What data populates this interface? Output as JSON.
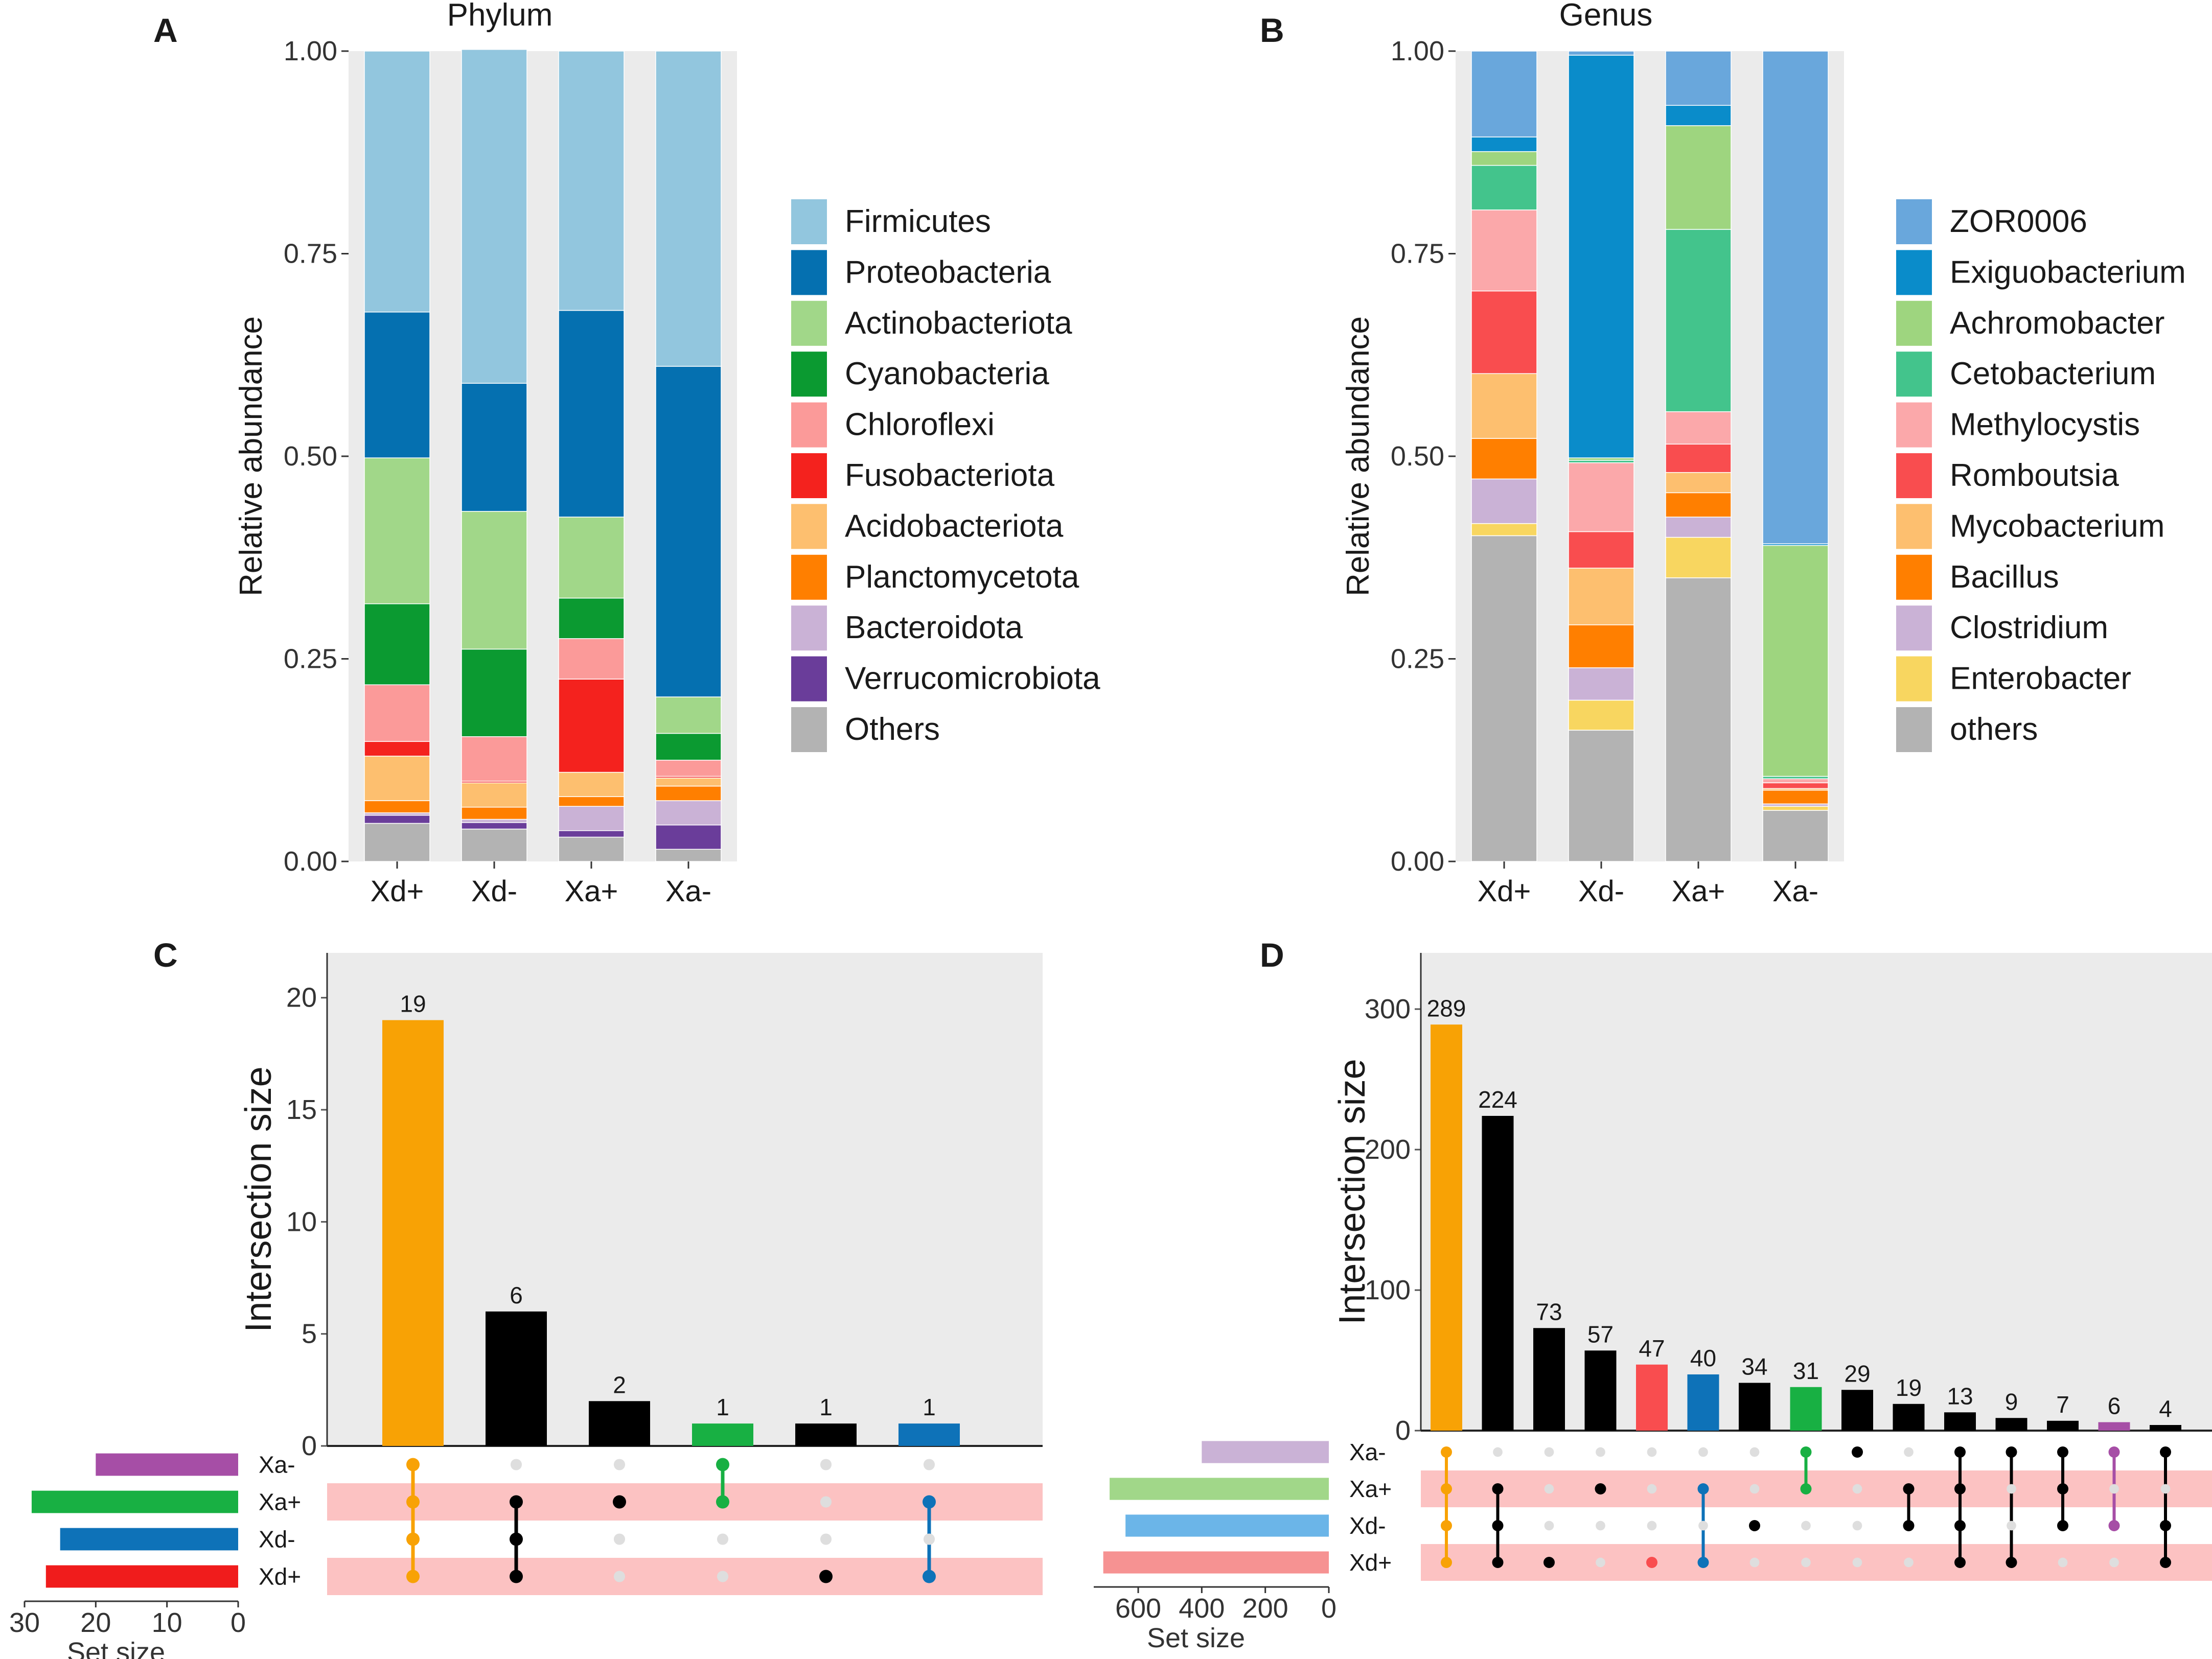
{
  "panels": {
    "A": {
      "letter": "A",
      "title": "Phylum"
    },
    "B": {
      "letter": "B",
      "title": "Genus"
    },
    "C": {
      "letter": "C"
    },
    "D": {
      "letter": "D"
    }
  },
  "chart_data": [
    {
      "id": "A",
      "type": "bar",
      "stacked": true,
      "title": "Phylum",
      "xlabel": "",
      "ylabel": "Relative abundance",
      "ylim": [
        0,
        1
      ],
      "yticks": [
        "0.00",
        "0.25",
        "0.50",
        "0.75",
        "1.00"
      ],
      "categories": [
        "Xd+",
        "Xd-",
        "Xa+",
        "Xa-"
      ],
      "legend_position": "right",
      "series": [
        {
          "name": "Others",
          "color": "#b3b3b3",
          "values": [
            0.047,
            0.04,
            0.03,
            0.015
          ]
        },
        {
          "name": "Verrucomicrobiota",
          "color": "#6a3d9a",
          "values": [
            0.01,
            0.008,
            0.008,
            0.03
          ]
        },
        {
          "name": "Bacteroidota",
          "color": "#cab2d6",
          "values": [
            0.003,
            0.004,
            0.03,
            0.03
          ]
        },
        {
          "name": "Planctomycetota",
          "color": "#ff7f00",
          "values": [
            0.015,
            0.015,
            0.012,
            0.018
          ]
        },
        {
          "name": "Acidobacteriota",
          "color": "#fdbf6f",
          "values": [
            0.055,
            0.03,
            0.03,
            0.01
          ]
        },
        {
          "name": "Fusobacteriota",
          "color": "#f4221e",
          "values": [
            0.018,
            0.002,
            0.115,
            0.002
          ]
        },
        {
          "name": "Chloroflexi",
          "color": "#fb9a99",
          "values": [
            0.07,
            0.055,
            0.05,
            0.02
          ]
        },
        {
          "name": "Cyanobacteria",
          "color": "#0b9a31",
          "values": [
            0.1,
            0.108,
            0.05,
            0.033
          ]
        },
        {
          "name": "Actinobacteriota",
          "color": "#a1d789",
          "values": [
            0.18,
            0.17,
            0.1,
            0.045
          ]
        },
        {
          "name": "Proteobacteria",
          "color": "#0570b0",
          "values": [
            0.18,
            0.158,
            0.255,
            0.408
          ]
        },
        {
          "name": "Firmicutes",
          "color": "#92c6de",
          "values": [
            0.322,
            0.412,
            0.32,
            0.389
          ]
        }
      ],
      "legend": [
        "Firmicutes",
        "Proteobacteria",
        "Actinobacteriota",
        "Cyanobacteria",
        "Chloroflexi",
        "Fusobacteriota",
        "Acidobacteriota",
        "Planctomycetota",
        "Bacteroidota",
        "Verrucomicrobiota",
        "Others"
      ]
    },
    {
      "id": "B",
      "type": "bar",
      "stacked": true,
      "title": "Genus",
      "xlabel": "",
      "ylabel": "Relative abundance",
      "ylim": [
        0,
        1
      ],
      "yticks": [
        "0.00",
        "0.25",
        "0.50",
        "0.75",
        "1.00"
      ],
      "categories": [
        "Xd+",
        "Xd-",
        "Xa+",
        "Xa-"
      ],
      "legend_position": "right",
      "series": [
        {
          "name": "others",
          "color": "#b3b3b3",
          "values": [
            0.402,
            0.162,
            0.35,
            0.063
          ]
        },
        {
          "name": "Enterobacter",
          "color": "#f8d660",
          "values": [
            0.015,
            0.037,
            0.05,
            0.005
          ]
        },
        {
          "name": "Clostridium",
          "color": "#cab2d6",
          "values": [
            0.055,
            0.04,
            0.025,
            0.003
          ]
        },
        {
          "name": "Bacillus",
          "color": "#ff7f00",
          "values": [
            0.05,
            0.053,
            0.03,
            0.017
          ]
        },
        {
          "name": "Mycobacterium",
          "color": "#fdbf6f",
          "values": [
            0.08,
            0.07,
            0.025,
            0.002
          ]
        },
        {
          "name": "Romboutsia",
          "color": "#f94d4f",
          "values": [
            0.102,
            0.045,
            0.035,
            0.007
          ]
        },
        {
          "name": "Methylocystis",
          "color": "#fba8aa",
          "values": [
            0.1,
            0.085,
            0.04,
            0.005
          ]
        },
        {
          "name": "Cetobacterium",
          "color": "#43c48c",
          "values": [
            0.055,
            0.003,
            0.225,
            0.003
          ]
        },
        {
          "name": "Achromobacter",
          "color": "#9ed57f",
          "values": [
            0.017,
            0.003,
            0.128,
            0.285
          ]
        },
        {
          "name": "Exiguobacterium",
          "color": "#0a8cca",
          "values": [
            0.018,
            0.497,
            0.025,
            0.002
          ]
        },
        {
          "name": "ZOR0006",
          "color": "#69a7dc",
          "values": [
            0.106,
            0.005,
            0.067,
            0.608
          ]
        }
      ],
      "legend": [
        "ZOR0006",
        "Exiguobacterium",
        "Achromobacter",
        "Cetobacterium",
        "Methylocystis",
        "Romboutsia",
        "Mycobacterium",
        "Bacillus",
        "Clostridium",
        "Enterobacter",
        "others"
      ]
    },
    {
      "id": "C",
      "type": "upset",
      "ylabel": "Intersection size",
      "ylim": [
        0,
        22
      ],
      "yticks": [
        0,
        5,
        10,
        15,
        20
      ],
      "sets": [
        "Xa-",
        "Xa+",
        "Xd-",
        "Xd+"
      ],
      "set_sizes": [
        20,
        29,
        25,
        27
      ],
      "set_colors": [
        "#a64ea6",
        "#18b043",
        "#0e72b8",
        "#f01c1c"
      ],
      "set_size_label": "Set size",
      "set_size_ticks": [
        30,
        20,
        10,
        0
      ],
      "set_size_max": 30,
      "intersections": [
        {
          "value": 19,
          "sets": [
            "Xa-",
            "Xa+",
            "Xd-",
            "Xd+"
          ],
          "color": "#f8a205"
        },
        {
          "value": 6,
          "sets": [
            "Xa+",
            "Xd-",
            "Xd+"
          ],
          "color": "#000000"
        },
        {
          "value": 2,
          "sets": [
            "Xa+"
          ],
          "color": "#000000"
        },
        {
          "value": 1,
          "sets": [
            "Xa-",
            "Xa+"
          ],
          "color": "#18b043"
        },
        {
          "value": 1,
          "sets": [
            "Xd+"
          ],
          "color": "#000000"
        },
        {
          "value": 1,
          "sets": [
            "Xa+",
            "Xd+"
          ],
          "color": "#0e72b8"
        }
      ]
    },
    {
      "id": "D",
      "type": "upset",
      "ylabel": "Intersection size",
      "ylim": [
        0,
        340
      ],
      "yticks": [
        0,
        100,
        200,
        300
      ],
      "sets": [
        "Xa-",
        "Xa+",
        "Xd-",
        "Xd+"
      ],
      "set_sizes": [
        400,
        690,
        640,
        710
      ],
      "set_colors": [
        "#cab2d6",
        "#a1d789",
        "#6bb5e8",
        "#f69292"
      ],
      "set_size_label": "Set size",
      "set_size_ticks": [
        600,
        400,
        200,
        0
      ],
      "set_size_max": 740,
      "intersections": [
        {
          "value": 289,
          "sets": [
            "Xa-",
            "Xa+",
            "Xd-",
            "Xd+"
          ],
          "color": "#f8a205"
        },
        {
          "value": 224,
          "sets": [
            "Xa+",
            "Xd-",
            "Xd+"
          ],
          "color": "#000000"
        },
        {
          "value": 73,
          "sets": [
            "Xd+"
          ],
          "color": "#000000"
        },
        {
          "value": 57,
          "sets": [
            "Xa+"
          ],
          "color": "#000000"
        },
        {
          "value": 47,
          "sets": [
            "Xd+"
          ],
          "color": "#f94d4f"
        },
        {
          "value": 40,
          "sets": [
            "Xa+",
            "Xd+"
          ],
          "color": "#0e72b8"
        },
        {
          "value": 34,
          "sets": [
            "Xd-"
          ],
          "color": "#000000"
        },
        {
          "value": 31,
          "sets": [
            "Xa-",
            "Xa+"
          ],
          "color": "#18b043"
        },
        {
          "value": 29,
          "sets": [
            "Xa-"
          ],
          "color": "#000000"
        },
        {
          "value": 19,
          "sets": [
            "Xa+",
            "Xd-"
          ],
          "color": "#000000"
        },
        {
          "value": 13,
          "sets": [
            "Xa-",
            "Xa+",
            "Xd-",
            "Xd+"
          ],
          "color": "#000000"
        },
        {
          "value": 9,
          "sets": [
            "Xa-",
            "Xd+"
          ],
          "color": "#000000"
        },
        {
          "value": 7,
          "sets": [
            "Xa-",
            "Xa+",
            "Xd-"
          ],
          "color": "#000000"
        },
        {
          "value": 6,
          "sets": [
            "Xa-",
            "Xd-"
          ],
          "color": "#a64ea6"
        },
        {
          "value": 4,
          "sets": [
            "Xa-",
            "Xd-",
            "Xd+"
          ],
          "color": "#000000"
        }
      ]
    }
  ]
}
